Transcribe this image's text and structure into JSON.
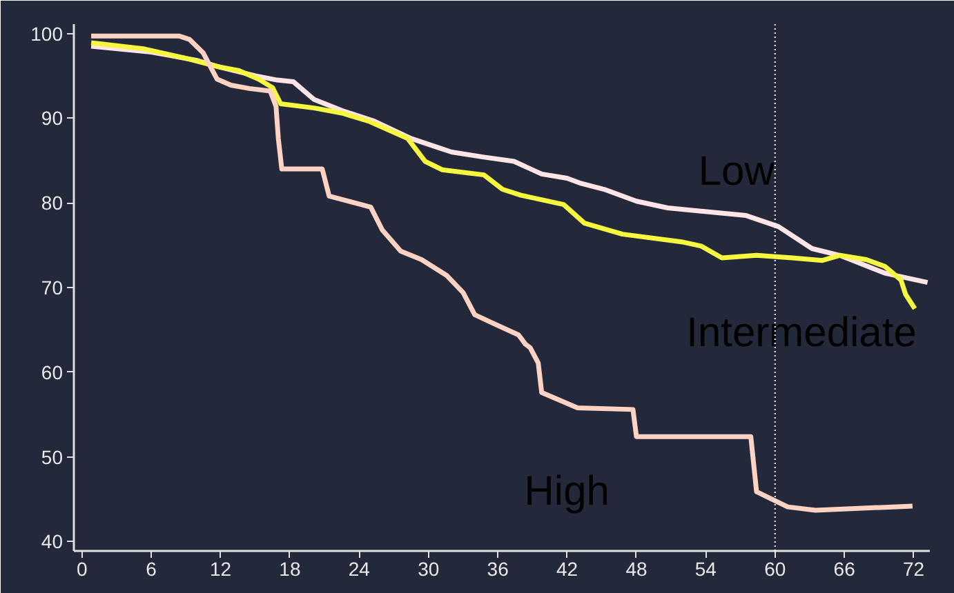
{
  "chart_data": {
    "type": "line",
    "xlim": [
      -0.7,
      73.4
    ],
    "ylim": [
      38.9,
      101.1
    ],
    "xticks": [
      0,
      6,
      12,
      18,
      24,
      30,
      36,
      42,
      48,
      54,
      60,
      66,
      72
    ],
    "yticks": [
      40,
      50,
      60,
      70,
      80,
      90,
      100
    ],
    "grid": false,
    "marker": "none",
    "line_style": "solid",
    "ref_lines": [
      {
        "axis": "x",
        "value": 60,
        "color": "#ffffff",
        "line_style": "dotted"
      }
    ],
    "series": [
      {
        "name": "Low",
        "color": "#ffe4e8",
        "x": [
          0.8,
          6,
          10,
          12,
          15,
          16.9,
          18.3,
          20.1,
          22.5,
          25.2,
          28.5,
          30.9,
          32,
          34.8,
          37.4,
          39.8,
          42,
          43.2,
          45.2,
          48,
          50.7,
          57.5,
          60.3,
          63.2,
          65.6,
          69.5,
          73.2
        ],
        "values": [
          98.5,
          97.8,
          96.8,
          96,
          95,
          94.5,
          94.3,
          92.2,
          90.9,
          89.7,
          87.6,
          86.5,
          86,
          85.4,
          84.9,
          83.4,
          82.9,
          82.3,
          81.6,
          80.2,
          79.4,
          78.5,
          77.2,
          74.6,
          73.8,
          71.7,
          70.6
        ]
      },
      {
        "name": "Intermediate",
        "color": "#f7f740",
        "x": [
          0.8,
          5.3,
          8.9,
          11.7,
          13.6,
          15.3,
          16.5,
          17.2,
          20.1,
          22.5,
          24.9,
          28.2,
          29.7,
          31.2,
          34.8,
          36.4,
          38,
          41.7,
          43.5,
          46.8,
          51.9,
          53.6,
          55.4,
          58.4,
          61.5,
          64.1,
          65.6,
          67.9,
          69.5,
          70.9,
          71.3,
          72.1
        ],
        "values": [
          98.9,
          98.2,
          97.1,
          96.1,
          95.6,
          94.6,
          93.6,
          91.7,
          91.2,
          90.6,
          89.6,
          87.6,
          84.9,
          83.9,
          83.3,
          81.6,
          80.9,
          79.8,
          77.6,
          76.3,
          75.4,
          74.9,
          73.5,
          73.8,
          73.5,
          73.2,
          73.8,
          73.3,
          72.5,
          70.9,
          69.2,
          67.5
        ]
      },
      {
        "name": "High",
        "color": "#ffd3c3",
        "x": [
          0.8,
          8.4,
          9.3,
          10.5,
          11.7,
          12.9,
          14.5,
          16.3,
          16.8,
          17,
          17.3,
          20.8,
          21.4,
          25,
          26,
          27.6,
          29.4,
          31.6,
          33,
          34,
          35.4,
          37.8,
          38.4,
          38.8,
          39.5,
          39.8,
          42.9,
          47.7,
          48,
          57.9,
          58.4,
          61.1,
          63.5,
          71.9
        ],
        "values": [
          99.7,
          99.7,
          99.3,
          97.7,
          94.6,
          93.9,
          93.5,
          93.2,
          91.4,
          87.6,
          84,
          84,
          80.8,
          79.5,
          76.8,
          74.3,
          73.3,
          71.4,
          69.4,
          66.8,
          65.9,
          64.4,
          63.3,
          62.9,
          61.1,
          57.6,
          55.8,
          55.6,
          52.4,
          52.4,
          45.9,
          44.1,
          43.7,
          44.2
        ]
      }
    ]
  }
}
